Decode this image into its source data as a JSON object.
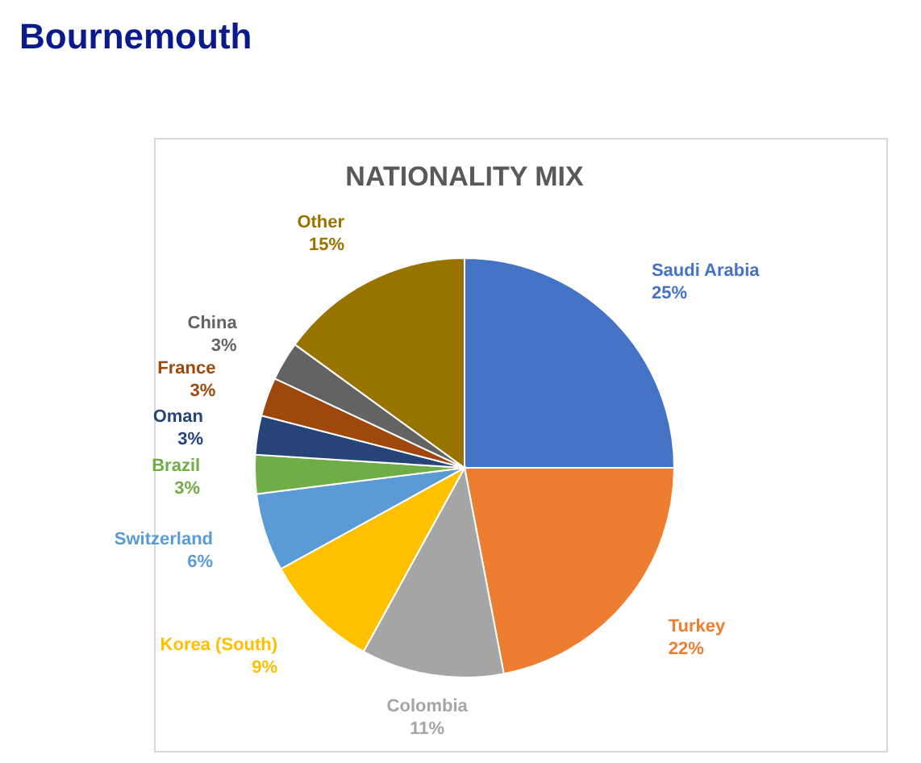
{
  "chart_data": {
    "type": "pie",
    "title": "Bournemouth",
    "subtitle": "NATIONALITY MIX",
    "categories": [
      "Saudi Arabia",
      "Turkey",
      "Colombia",
      "Korea (South)",
      "Switzerland",
      "Brazil",
      "Oman",
      "France",
      "China",
      "Other"
    ],
    "values": [
      25,
      22,
      11,
      9,
      6,
      3,
      3,
      3,
      3,
      15
    ],
    "value_labels": [
      "25%",
      "22%",
      "11%",
      "9%",
      "6%",
      "3%",
      "3%",
      "3%",
      "3%",
      "15%"
    ],
    "colors": [
      "#4472c4",
      "#ed7d31",
      "#a5a5a5",
      "#ffc000",
      "#5b9bd5",
      "#70ad47",
      "#264478",
      "#9e480e",
      "#636363",
      "#997300"
    ]
  }
}
